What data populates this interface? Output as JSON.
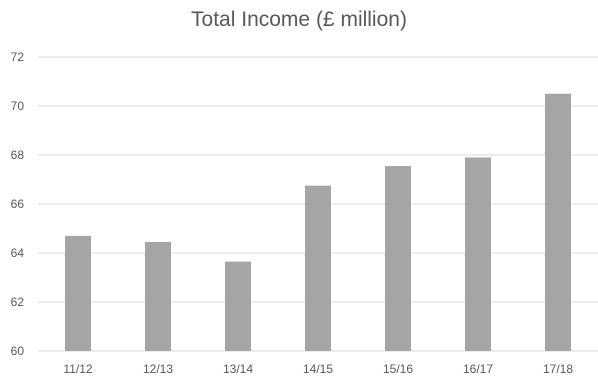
{
  "chart_data": {
    "type": "bar",
    "title": "Total Income (£ million)",
    "categories": [
      "11/12",
      "12/13",
      "13/14",
      "14/15",
      "15/16",
      "16/17",
      "17/18"
    ],
    "values": [
      64.7,
      64.45,
      63.65,
      66.75,
      67.55,
      67.9,
      70.5
    ],
    "xlabel": "",
    "ylabel": "",
    "ylim": [
      60,
      72
    ],
    "yticks": [
      60,
      62,
      64,
      66,
      68,
      70,
      72
    ],
    "grid": true,
    "legend": "none",
    "colors": {
      "bar": "#a5a5a5",
      "grid": "#d9d9d9",
      "text": "#595959"
    }
  }
}
